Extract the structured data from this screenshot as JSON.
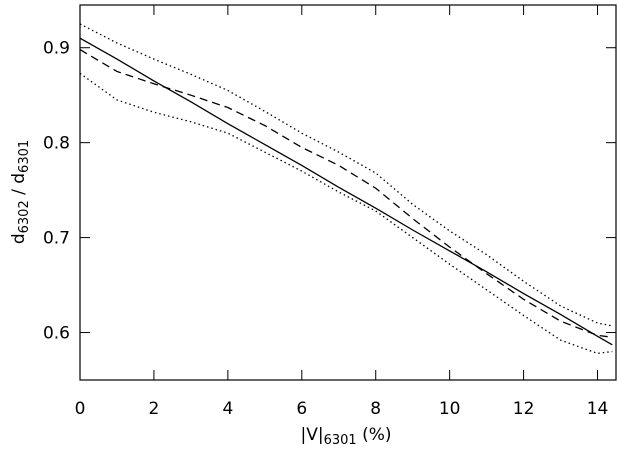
{
  "chart_data": {
    "type": "line",
    "xlabel": [
      "|V|",
      "6301",
      " (%)"
    ],
    "ylabel": [
      "d",
      "6302",
      " / d",
      "6301"
    ],
    "x": [
      0,
      1,
      2,
      3,
      4,
      5,
      6,
      7,
      8,
      9,
      10,
      11,
      12,
      13,
      14,
      14.4
    ],
    "series": [
      {
        "color": "#000000",
        "style": "solid",
        "values": [
          0.91,
          0.888,
          0.865,
          0.843,
          0.82,
          0.798,
          0.776,
          0.753,
          0.731,
          0.708,
          0.686,
          0.664,
          0.641,
          0.619,
          0.596,
          0.587
        ]
      },
      {
        "color": "#000000",
        "style": "dashed",
        "values": [
          0.898,
          0.875,
          0.862,
          0.85,
          0.837,
          0.818,
          0.795,
          0.776,
          0.752,
          0.72,
          0.69,
          0.662,
          0.635,
          0.612,
          0.597,
          0.595
        ]
      },
      {
        "color": "#000000",
        "style": "dotted",
        "values": [
          0.925,
          0.905,
          0.888,
          0.872,
          0.855,
          0.833,
          0.81,
          0.79,
          0.768,
          0.735,
          0.707,
          0.682,
          0.654,
          0.628,
          0.61,
          0.607
        ]
      },
      {
        "color": "#000000",
        "style": "dotted",
        "values": [
          0.873,
          0.845,
          0.832,
          0.822,
          0.81,
          0.79,
          0.77,
          0.748,
          0.728,
          0.7,
          0.672,
          0.645,
          0.618,
          0.592,
          0.578,
          0.58
        ]
      }
    ],
    "xlim": [
      0,
      14.5
    ],
    "xticks": [
      0,
      2,
      4,
      6,
      8,
      10,
      12,
      14
    ],
    "ylim": [
      0.55,
      0.945
    ],
    "yticks": [
      0.6,
      0.7,
      0.8,
      0.9
    ]
  }
}
